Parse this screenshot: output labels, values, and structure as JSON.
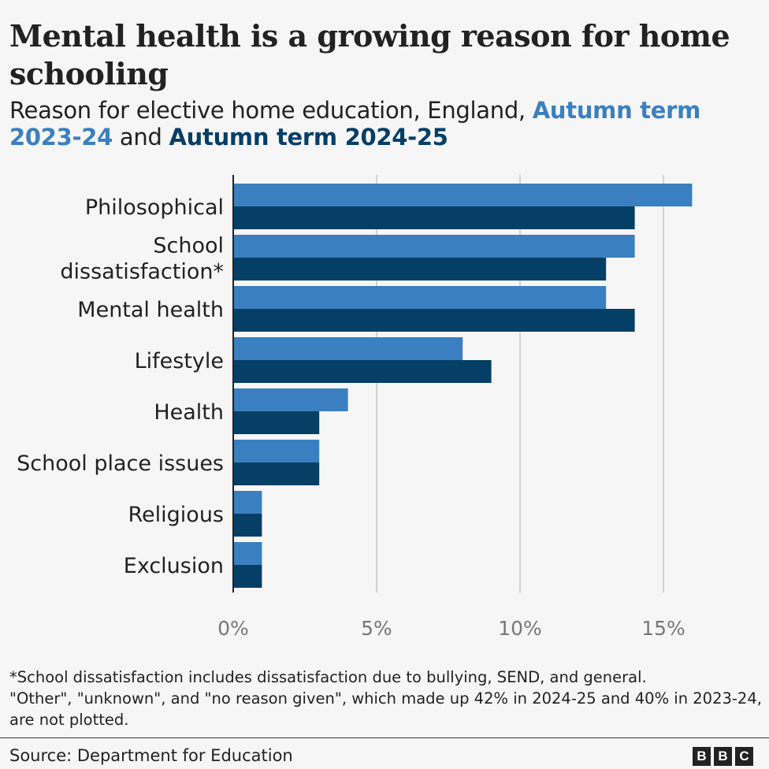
{
  "title": "Mental health is a growing reason for home schooling",
  "subtitle": {
    "prefix": "Reason for elective home education, England, ",
    "series1": "Autumn term 2023-24",
    "connector": " and ",
    "series2": "Autumn term 2024-25"
  },
  "colors": {
    "series1": "#3a80c0",
    "series2": "#063f66"
  },
  "chart_data": {
    "type": "bar",
    "orientation": "horizontal",
    "categories": [
      [
        "Philosophical"
      ],
      [
        "School",
        "dissatisfaction*"
      ],
      [
        "Mental health"
      ],
      [
        "Lifestyle"
      ],
      [
        "Health"
      ],
      [
        "School place issues"
      ],
      [
        "Religious"
      ],
      [
        "Exclusion"
      ]
    ],
    "series": [
      {
        "name": "Autumn term 2023-24",
        "values": [
          16,
          14,
          13,
          8,
          4,
          3,
          1,
          1
        ]
      },
      {
        "name": "Autumn term 2024-25",
        "values": [
          14,
          13,
          14,
          9,
          3,
          3,
          1,
          1
        ]
      }
    ],
    "xlim": [
      0,
      17
    ],
    "xticks": [
      0,
      5,
      10,
      15
    ],
    "xtick_labels": [
      "0%",
      "5%",
      "10%",
      "15%"
    ],
    "grid": true,
    "legend": "in subtitle"
  },
  "footnote": {
    "line1": "*School dissatisfaction includes dissatisfaction due to bullying, SEND, and general.",
    "line2": "\"Other\", \"unknown\", and \"no reason given\", which made up 42% in 2024-25 and 40% in 2023-24, are not plotted."
  },
  "source": "Source: Department for Education",
  "logo": [
    "B",
    "B",
    "C"
  ]
}
